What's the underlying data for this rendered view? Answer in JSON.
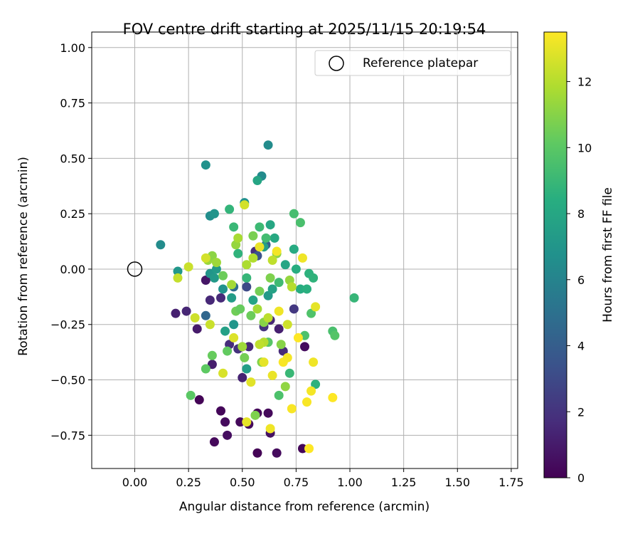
{
  "chart_data": {
    "type": "scatter",
    "title": "FOV centre drift starting at 2025/11/15 20:19:54",
    "xlabel": "Angular distance from reference (arcmin)",
    "ylabel": "Rotation from reference (arcmin)",
    "xlim": [
      -0.2,
      1.78
    ],
    "ylim": [
      -0.9,
      1.07
    ],
    "xticks": [
      "0.00",
      "0.25",
      "0.50",
      "0.75",
      "1.00",
      "1.25",
      "1.50",
      "1.75"
    ],
    "yticks": [
      "1.00",
      "0.75",
      "0.50",
      "0.25",
      "0.00",
      "−0.25",
      "−0.50",
      "−0.75"
    ],
    "grid": true,
    "legend": {
      "placement": "top-right",
      "entries": [
        "Reference platepar"
      ]
    },
    "reference_point": {
      "x": 0.0,
      "y": 0.0
    },
    "colorbar": {
      "label": "Hours from first FF file",
      "range": [
        0,
        13.5
      ],
      "ticks": [
        "0",
        "2",
        "4",
        "6",
        "8",
        "10",
        "12"
      ],
      "colormap": "viridis"
    },
    "points": [
      [
        0.3,
        -0.59,
        0.1
      ],
      [
        0.37,
        -0.78,
        0.3
      ],
      [
        0.4,
        -0.64,
        0.2
      ],
      [
        0.42,
        -0.69,
        0.4
      ],
      [
        0.43,
        -0.75,
        0.5
      ],
      [
        0.49,
        -0.69,
        0.3
      ],
      [
        0.53,
        -0.7,
        0.4
      ],
      [
        0.57,
        -0.65,
        0.2
      ],
      [
        0.57,
        -0.83,
        0.1
      ],
      [
        0.62,
        -0.65,
        0.3
      ],
      [
        0.63,
        -0.74,
        0.6
      ],
      [
        0.66,
        -0.83,
        0.4
      ],
      [
        0.78,
        -0.81,
        0.2
      ],
      [
        0.79,
        -0.35,
        0.4
      ],
      [
        0.19,
        -0.2,
        1.2
      ],
      [
        0.24,
        -0.19,
        1.4
      ],
      [
        0.29,
        -0.27,
        1.0
      ],
      [
        0.33,
        -0.05,
        0.8
      ],
      [
        0.35,
        -0.14,
        1.5
      ],
      [
        0.36,
        -0.43,
        1.1
      ],
      [
        0.4,
        -0.13,
        1.6
      ],
      [
        0.44,
        -0.34,
        1.7
      ],
      [
        0.48,
        -0.36,
        1.9
      ],
      [
        0.5,
        -0.49,
        1.3
      ],
      [
        0.53,
        -0.35,
        1.5
      ],
      [
        0.56,
        0.08,
        1.8
      ],
      [
        0.6,
        -0.26,
        2.0
      ],
      [
        0.63,
        -0.23,
        1.5
      ],
      [
        0.67,
        -0.27,
        1.2
      ],
      [
        0.69,
        -0.37,
        1.6
      ],
      [
        0.74,
        -0.18,
        2.2
      ],
      [
        0.52,
        -0.08,
        3.0
      ],
      [
        0.57,
        0.06,
        3.5
      ],
      [
        0.61,
        0.11,
        4.0
      ],
      [
        0.33,
        -0.21,
        4.5
      ],
      [
        0.46,
        -0.08,
        4.8
      ],
      [
        0.12,
        0.11,
        6.5
      ],
      [
        0.33,
        0.47,
        6.8
      ],
      [
        0.35,
        0.24,
        6.6
      ],
      [
        0.37,
        0.25,
        6.9
      ],
      [
        0.59,
        0.42,
        6.4
      ],
      [
        0.62,
        0.56,
        6.5
      ],
      [
        0.51,
        0.3,
        6.7
      ],
      [
        0.2,
        -0.01,
        7.1
      ],
      [
        0.35,
        -0.02,
        7.0
      ],
      [
        0.37,
        -0.04,
        7.2
      ],
      [
        0.38,
        0.0,
        7.3
      ],
      [
        0.41,
        -0.09,
        6.8
      ],
      [
        0.45,
        -0.13,
        7.4
      ],
      [
        0.46,
        -0.25,
        7.0
      ],
      [
        0.42,
        -0.28,
        7.6
      ],
      [
        0.52,
        -0.45,
        7.5
      ],
      [
        0.55,
        -0.14,
        7.8
      ],
      [
        0.57,
        0.4,
        7.9
      ],
      [
        0.6,
        0.1,
        7.6
      ],
      [
        0.62,
        -0.12,
        7.2
      ],
      [
        0.63,
        0.2,
        8.0
      ],
      [
        0.64,
        -0.09,
        7.7
      ],
      [
        0.65,
        0.14,
        8.1
      ],
      [
        0.7,
        0.02,
        7.9
      ],
      [
        0.74,
        0.09,
        8.2
      ],
      [
        0.75,
        0.0,
        8.4
      ],
      [
        0.77,
        -0.09,
        8.3
      ],
      [
        0.8,
        -0.09,
        8.5
      ],
      [
        0.81,
        -0.02,
        8.6
      ],
      [
        0.83,
        -0.04,
        8.7
      ],
      [
        0.84,
        -0.52,
        8.6
      ],
      [
        1.02,
        -0.13,
        8.9
      ],
      [
        0.44,
        0.27,
        8.8
      ],
      [
        0.46,
        0.19,
        9.0
      ],
      [
        0.48,
        0.07,
        8.7
      ],
      [
        0.52,
        -0.04,
        8.9
      ],
      [
        0.58,
        0.19,
        9.1
      ],
      [
        0.61,
        0.14,
        9.3
      ],
      [
        0.67,
        -0.06,
        9.2
      ],
      [
        0.72,
        -0.47,
        9.0
      ],
      [
        0.74,
        0.25,
        9.4
      ],
      [
        0.77,
        0.21,
        9.5
      ],
      [
        0.79,
        -0.3,
        9.6
      ],
      [
        0.82,
        -0.2,
        9.7
      ],
      [
        0.92,
        -0.28,
        9.5
      ],
      [
        0.93,
        -0.3,
        9.8
      ],
      [
        0.67,
        -0.57,
        9.6
      ],
      [
        0.62,
        -0.33,
        9.9
      ],
      [
        0.26,
        -0.57,
        10.0
      ],
      [
        0.33,
        -0.45,
        10.1
      ],
      [
        0.36,
        -0.39,
        10.3
      ],
      [
        0.41,
        -0.03,
        10.4
      ],
      [
        0.43,
        -0.37,
        10.2
      ],
      [
        0.47,
        -0.19,
        10.5
      ],
      [
        0.49,
        -0.18,
        10.3
      ],
      [
        0.51,
        -0.4,
        10.6
      ],
      [
        0.54,
        -0.21,
        10.4
      ],
      [
        0.55,
        0.15,
        10.7
      ],
      [
        0.56,
        -0.66,
        10.8
      ],
      [
        0.58,
        -0.1,
        10.6
      ],
      [
        0.59,
        -0.42,
        10.9
      ],
      [
        0.6,
        -0.24,
        11.0
      ],
      [
        0.63,
        -0.04,
        10.8
      ],
      [
        0.66,
        0.07,
        11.1
      ],
      [
        0.68,
        -0.34,
        11.0
      ],
      [
        0.7,
        -0.53,
        11.2
      ],
      [
        0.72,
        -0.05,
        11.3
      ],
      [
        0.34,
        0.04,
        11.4
      ],
      [
        0.36,
        0.06,
        11.1
      ],
      [
        0.38,
        0.03,
        11.5
      ],
      [
        0.45,
        -0.07,
        11.6
      ],
      [
        0.47,
        0.11,
        11.3
      ],
      [
        0.48,
        0.14,
        11.7
      ],
      [
        0.5,
        -0.35,
        11.5
      ],
      [
        0.52,
        0.02,
        11.8
      ],
      [
        0.55,
        0.05,
        11.9
      ],
      [
        0.57,
        -0.18,
        11.6
      ],
      [
        0.6,
        -0.33,
        12.0
      ],
      [
        0.62,
        -0.22,
        12.1
      ],
      [
        0.64,
        0.04,
        12.2
      ],
      [
        0.73,
        -0.08,
        12.0
      ],
      [
        0.2,
        -0.04,
        12.3
      ],
      [
        0.25,
        0.01,
        12.4
      ],
      [
        0.28,
        -0.22,
        12.5
      ],
      [
        0.33,
        0.05,
        12.6
      ],
      [
        0.35,
        -0.25,
        12.4
      ],
      [
        0.41,
        -0.47,
        12.7
      ],
      [
        0.46,
        -0.31,
        12.8
      ],
      [
        0.51,
        0.29,
        12.6
      ],
      [
        0.52,
        -0.69,
        13.0
      ],
      [
        0.54,
        -0.51,
        12.9
      ],
      [
        0.58,
        0.1,
        13.1
      ],
      [
        0.6,
        -0.42,
        13.0
      ],
      [
        0.63,
        -0.72,
        13.2
      ],
      [
        0.64,
        -0.48,
        13.1
      ],
      [
        0.66,
        0.08,
        13.3
      ],
      [
        0.67,
        -0.19,
        13.2
      ],
      [
        0.69,
        -0.42,
        13.4
      ],
      [
        0.71,
        -0.4,
        13.3
      ],
      [
        0.73,
        -0.63,
        13.4
      ],
      [
        0.76,
        -0.31,
        13.5
      ],
      [
        0.78,
        0.05,
        13.2
      ],
      [
        0.8,
        -0.6,
        13.4
      ],
      [
        0.81,
        -0.81,
        13.5
      ],
      [
        0.82,
        -0.55,
        13.3
      ],
      [
        0.83,
        -0.42,
        13.2
      ],
      [
        0.84,
        -0.17,
        13.0
      ],
      [
        0.92,
        -0.58,
        13.5
      ],
      [
        0.58,
        -0.34,
        12.2
      ],
      [
        0.71,
        -0.25,
        12.5
      ]
    ]
  }
}
